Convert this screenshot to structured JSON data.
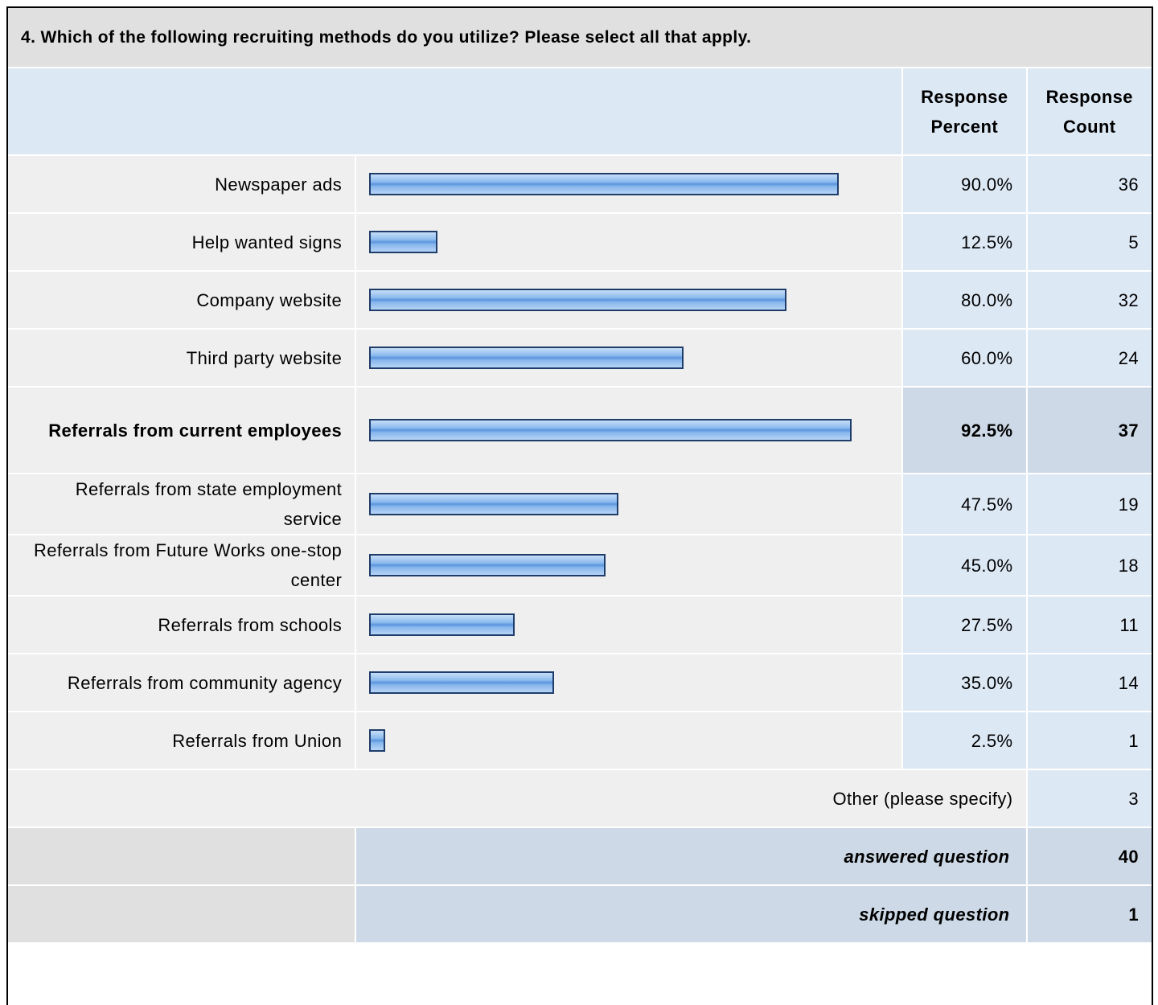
{
  "question": "4. Which of the following recruiting methods do you utilize? Please select all that apply.",
  "headers": {
    "percent": "Response Percent",
    "count": "Response Count"
  },
  "xlim": [
    0,
    100
  ],
  "highlight_row": 4,
  "rows": [
    {
      "label": "Newspaper ads",
      "percent": 90.0,
      "percent_label": "90.0%",
      "count": 36
    },
    {
      "label": "Help wanted signs",
      "percent": 12.5,
      "percent_label": "12.5%",
      "count": 5
    },
    {
      "label": "Company website",
      "percent": 80.0,
      "percent_label": "80.0%",
      "count": 32
    },
    {
      "label": "Third party website",
      "percent": 60.0,
      "percent_label": "60.0%",
      "count": 24
    },
    {
      "label": "Referrals from current employees",
      "percent": 92.5,
      "percent_label": "92.5%",
      "count": 37
    },
    {
      "label": "Referrals from state employment service",
      "percent": 47.5,
      "percent_label": "47.5%",
      "count": 19
    },
    {
      "label": "Referrals from Future Works one-stop center",
      "percent": 45.0,
      "percent_label": "45.0%",
      "count": 18
    },
    {
      "label": "Referrals from schools",
      "percent": 27.5,
      "percent_label": "27.5%",
      "count": 11
    },
    {
      "label": "Referrals from community agency",
      "percent": 35.0,
      "percent_label": "35.0%",
      "count": 14
    },
    {
      "label": "Referrals from Union",
      "percent": 2.5,
      "percent_label": "2.5%",
      "count": 1
    }
  ],
  "other": {
    "label": "Other (please specify)",
    "count": 3
  },
  "answered": {
    "label": "answered question",
    "count": 40
  },
  "skipped": {
    "label": "skipped question",
    "count": 1
  }
}
